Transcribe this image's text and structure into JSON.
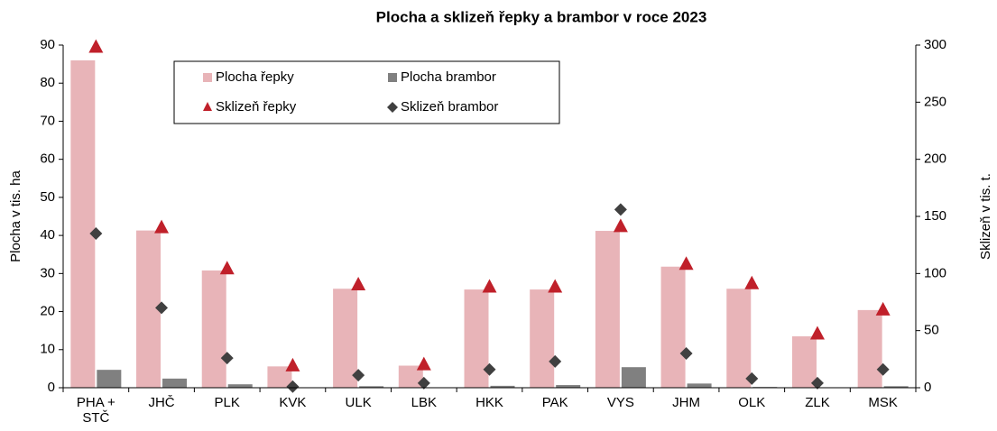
{
  "chart_data": {
    "type": "bar",
    "title": "Plocha a sklizeň řepky a brambor v roce 2023",
    "categories": [
      "PHA + STČ",
      "JHČ",
      "PLK",
      "KVK",
      "ULK",
      "LBK",
      "HKK",
      "PAK",
      "VYS",
      "JHM",
      "OLK",
      "ZLK",
      "MSK"
    ],
    "ylabel": "Plocha v tis. ha",
    "y2label": "Sklizeň v tis. t.",
    "ylim": [
      0,
      90
    ],
    "yticks": [
      0,
      10,
      20,
      30,
      40,
      50,
      60,
      70,
      80,
      90
    ],
    "y2lim": [
      0,
      300
    ],
    "y2ticks": [
      0,
      50,
      100,
      150,
      200,
      250,
      300
    ],
    "series": [
      {
        "name": "Plocha řepky",
        "type": "bar",
        "color": "#e8b4b8",
        "values": [
          86,
          41.3,
          30.8,
          5.6,
          26,
          5.8,
          25.8,
          25.8,
          41.2,
          31.8,
          26,
          13.5,
          20.4
        ]
      },
      {
        "name": "Plocha brambor",
        "type": "bar",
        "color": "#808080",
        "values": [
          4.7,
          2.4,
          0.9,
          0.1,
          0.4,
          0.1,
          0.5,
          0.7,
          5.4,
          1.1,
          0.2,
          0.1,
          0.4
        ]
      },
      {
        "name": "Sklizeň řepky",
        "type": "triangle",
        "axis": "y2",
        "color": "#c0202a",
        "values": [
          298,
          140,
          104,
          19,
          90,
          20,
          88,
          88,
          141,
          108,
          91,
          47,
          68
        ]
      },
      {
        "name": "Sklizeň brambor",
        "type": "diamond",
        "axis": "y2",
        "color": "#404040",
        "values": [
          135,
          70,
          26,
          1,
          11,
          4,
          16,
          23,
          156,
          30,
          8,
          4,
          16
        ]
      }
    ]
  }
}
